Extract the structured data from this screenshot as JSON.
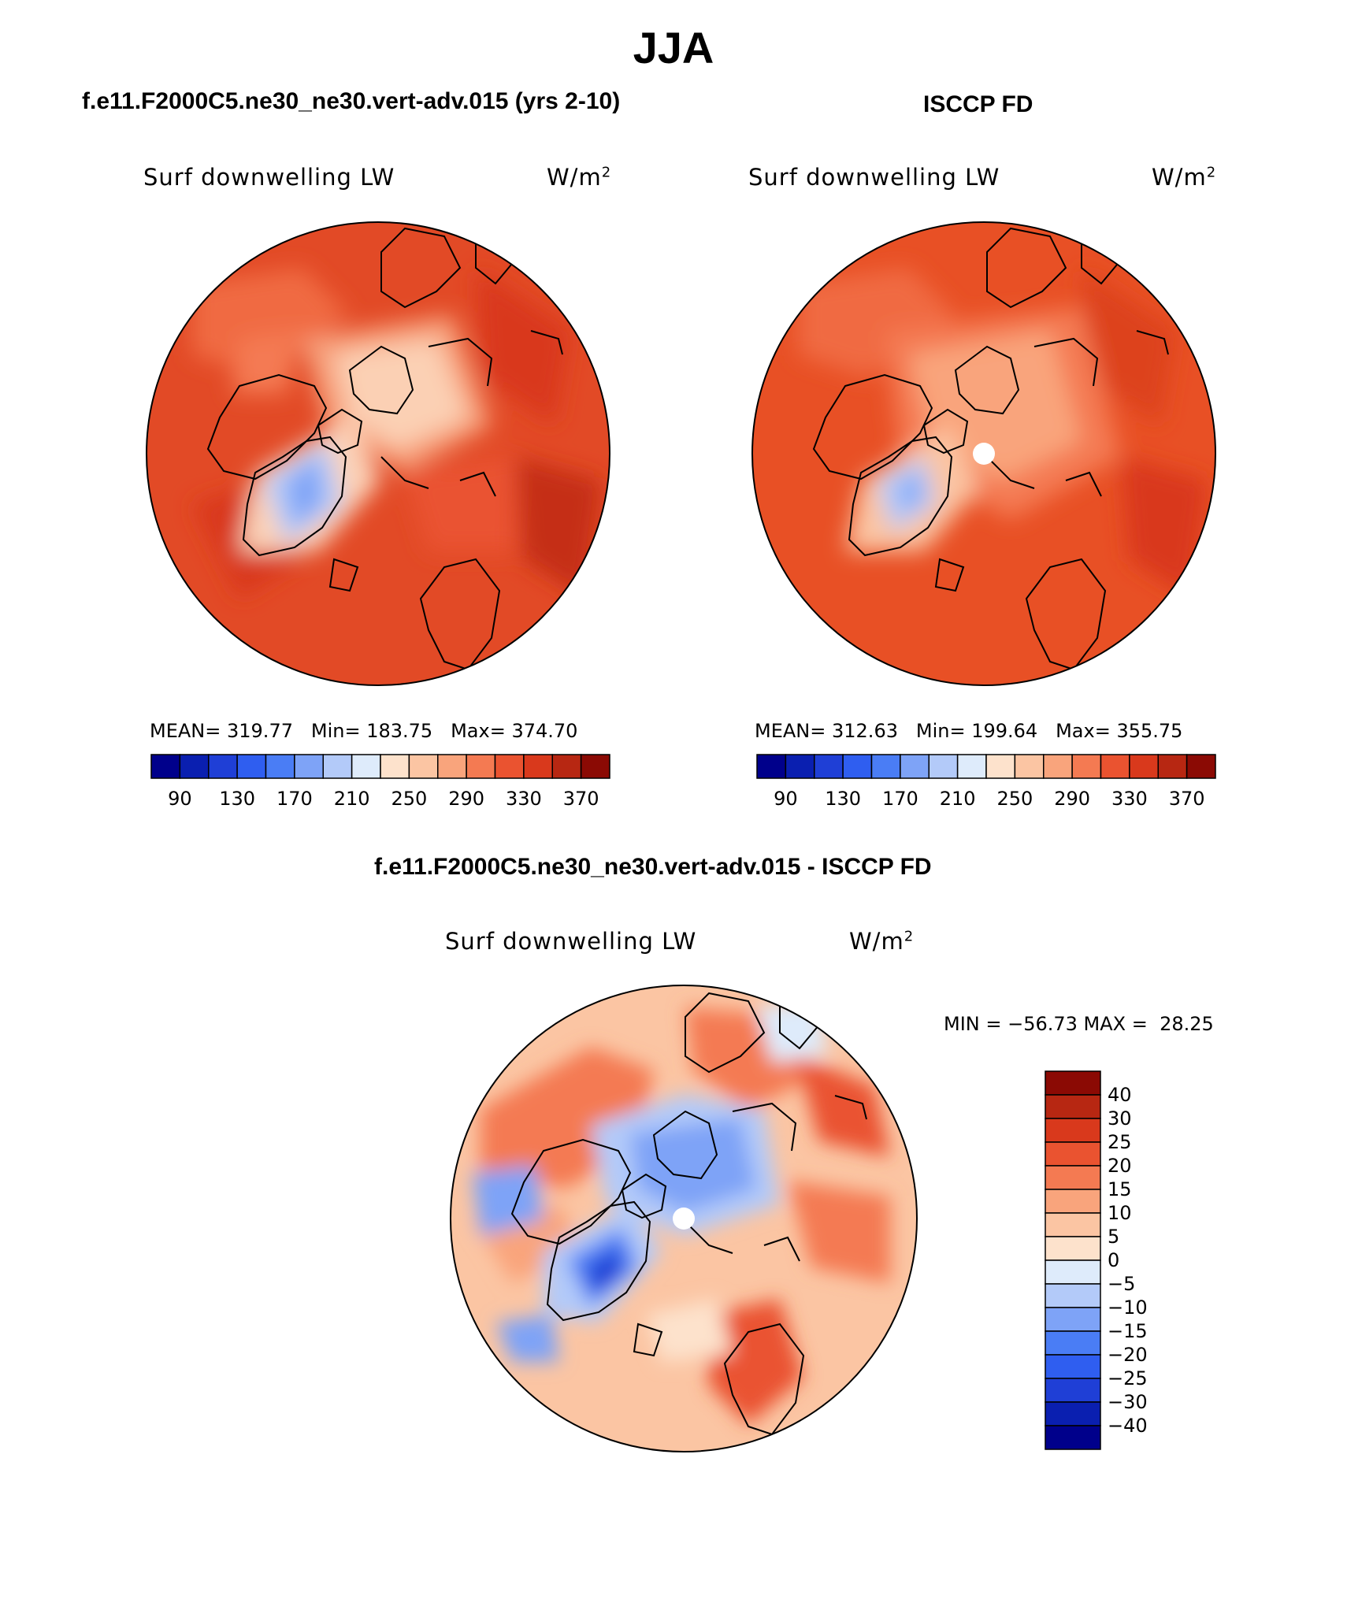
{
  "page_title": "JJA",
  "panels": [
    {
      "title": "f.e11.F2000C5.ne30_ne30.vert-adv.015 (yrs 2-10)",
      "variable": "Surf downwelling LW",
      "units": "W/m",
      "units_sup": "2",
      "mean_label": "MEAN=",
      "mean": "319.77",
      "min_label": "Min=",
      "min": "183.75",
      "max_label": "Max=",
      "max": "374.70"
    },
    {
      "title": "ISCCP FD",
      "variable": "Surf downwelling LW",
      "units": "W/m",
      "units_sup": "2",
      "mean_label": "MEAN=",
      "mean": "312.63",
      "min_label": "Min=",
      "min": "199.64",
      "max_label": "Max=",
      "max": "355.75"
    },
    {
      "title": "f.e11.F2000C5.ne30_ne30.vert-adv.015 - ISCCP FD",
      "variable": "Surf downwelling LW",
      "units": "W/m",
      "units_sup": "2",
      "minmax_text": "MIN = −56.73 MAX =  28.25"
    }
  ],
  "colorbars": {
    "absolute": {
      "orientation": "horizontal",
      "tick_labels": [
        "90",
        "130",
        "170",
        "210",
        "250",
        "290",
        "330",
        "370"
      ],
      "colors": [
        "#00008b",
        "#0a1fb0",
        "#1f3fd6",
        "#2f5ef0",
        "#4a7df5",
        "#7ea3f7",
        "#b3caf9",
        "#deebfb",
        "#fde2cc",
        "#fbc5a3",
        "#f9a47c",
        "#f47a52",
        "#ea5330",
        "#d9391c",
        "#b72712",
        "#8b0a04"
      ]
    },
    "difference": {
      "orientation": "vertical",
      "tick_labels": [
        "40",
        "30",
        "25",
        "20",
        "15",
        "10",
        "5",
        "0",
        "−5",
        "−10",
        "−15",
        "−20",
        "−25",
        "−30",
        "−40"
      ],
      "colors": [
        "#8b0a04",
        "#b72712",
        "#d9391c",
        "#ea5330",
        "#f47a52",
        "#f9a47c",
        "#fbc5a3",
        "#fde2cc",
        "#deebfb",
        "#b3caf9",
        "#7ea3f7",
        "#4a7df5",
        "#2f5ef0",
        "#1f3fd6",
        "#0a1fb0",
        "#00008b"
      ]
    }
  },
  "maps": {
    "projection": "north polar stereographic",
    "model_field": "mostly orange-red, pale over Arctic Ocean, blue over Greenland",
    "obs_field": "orange-red with pale Arctic, white missing pole",
    "diff_field": "blue over Arctic and Greenland, red over land masses"
  }
}
